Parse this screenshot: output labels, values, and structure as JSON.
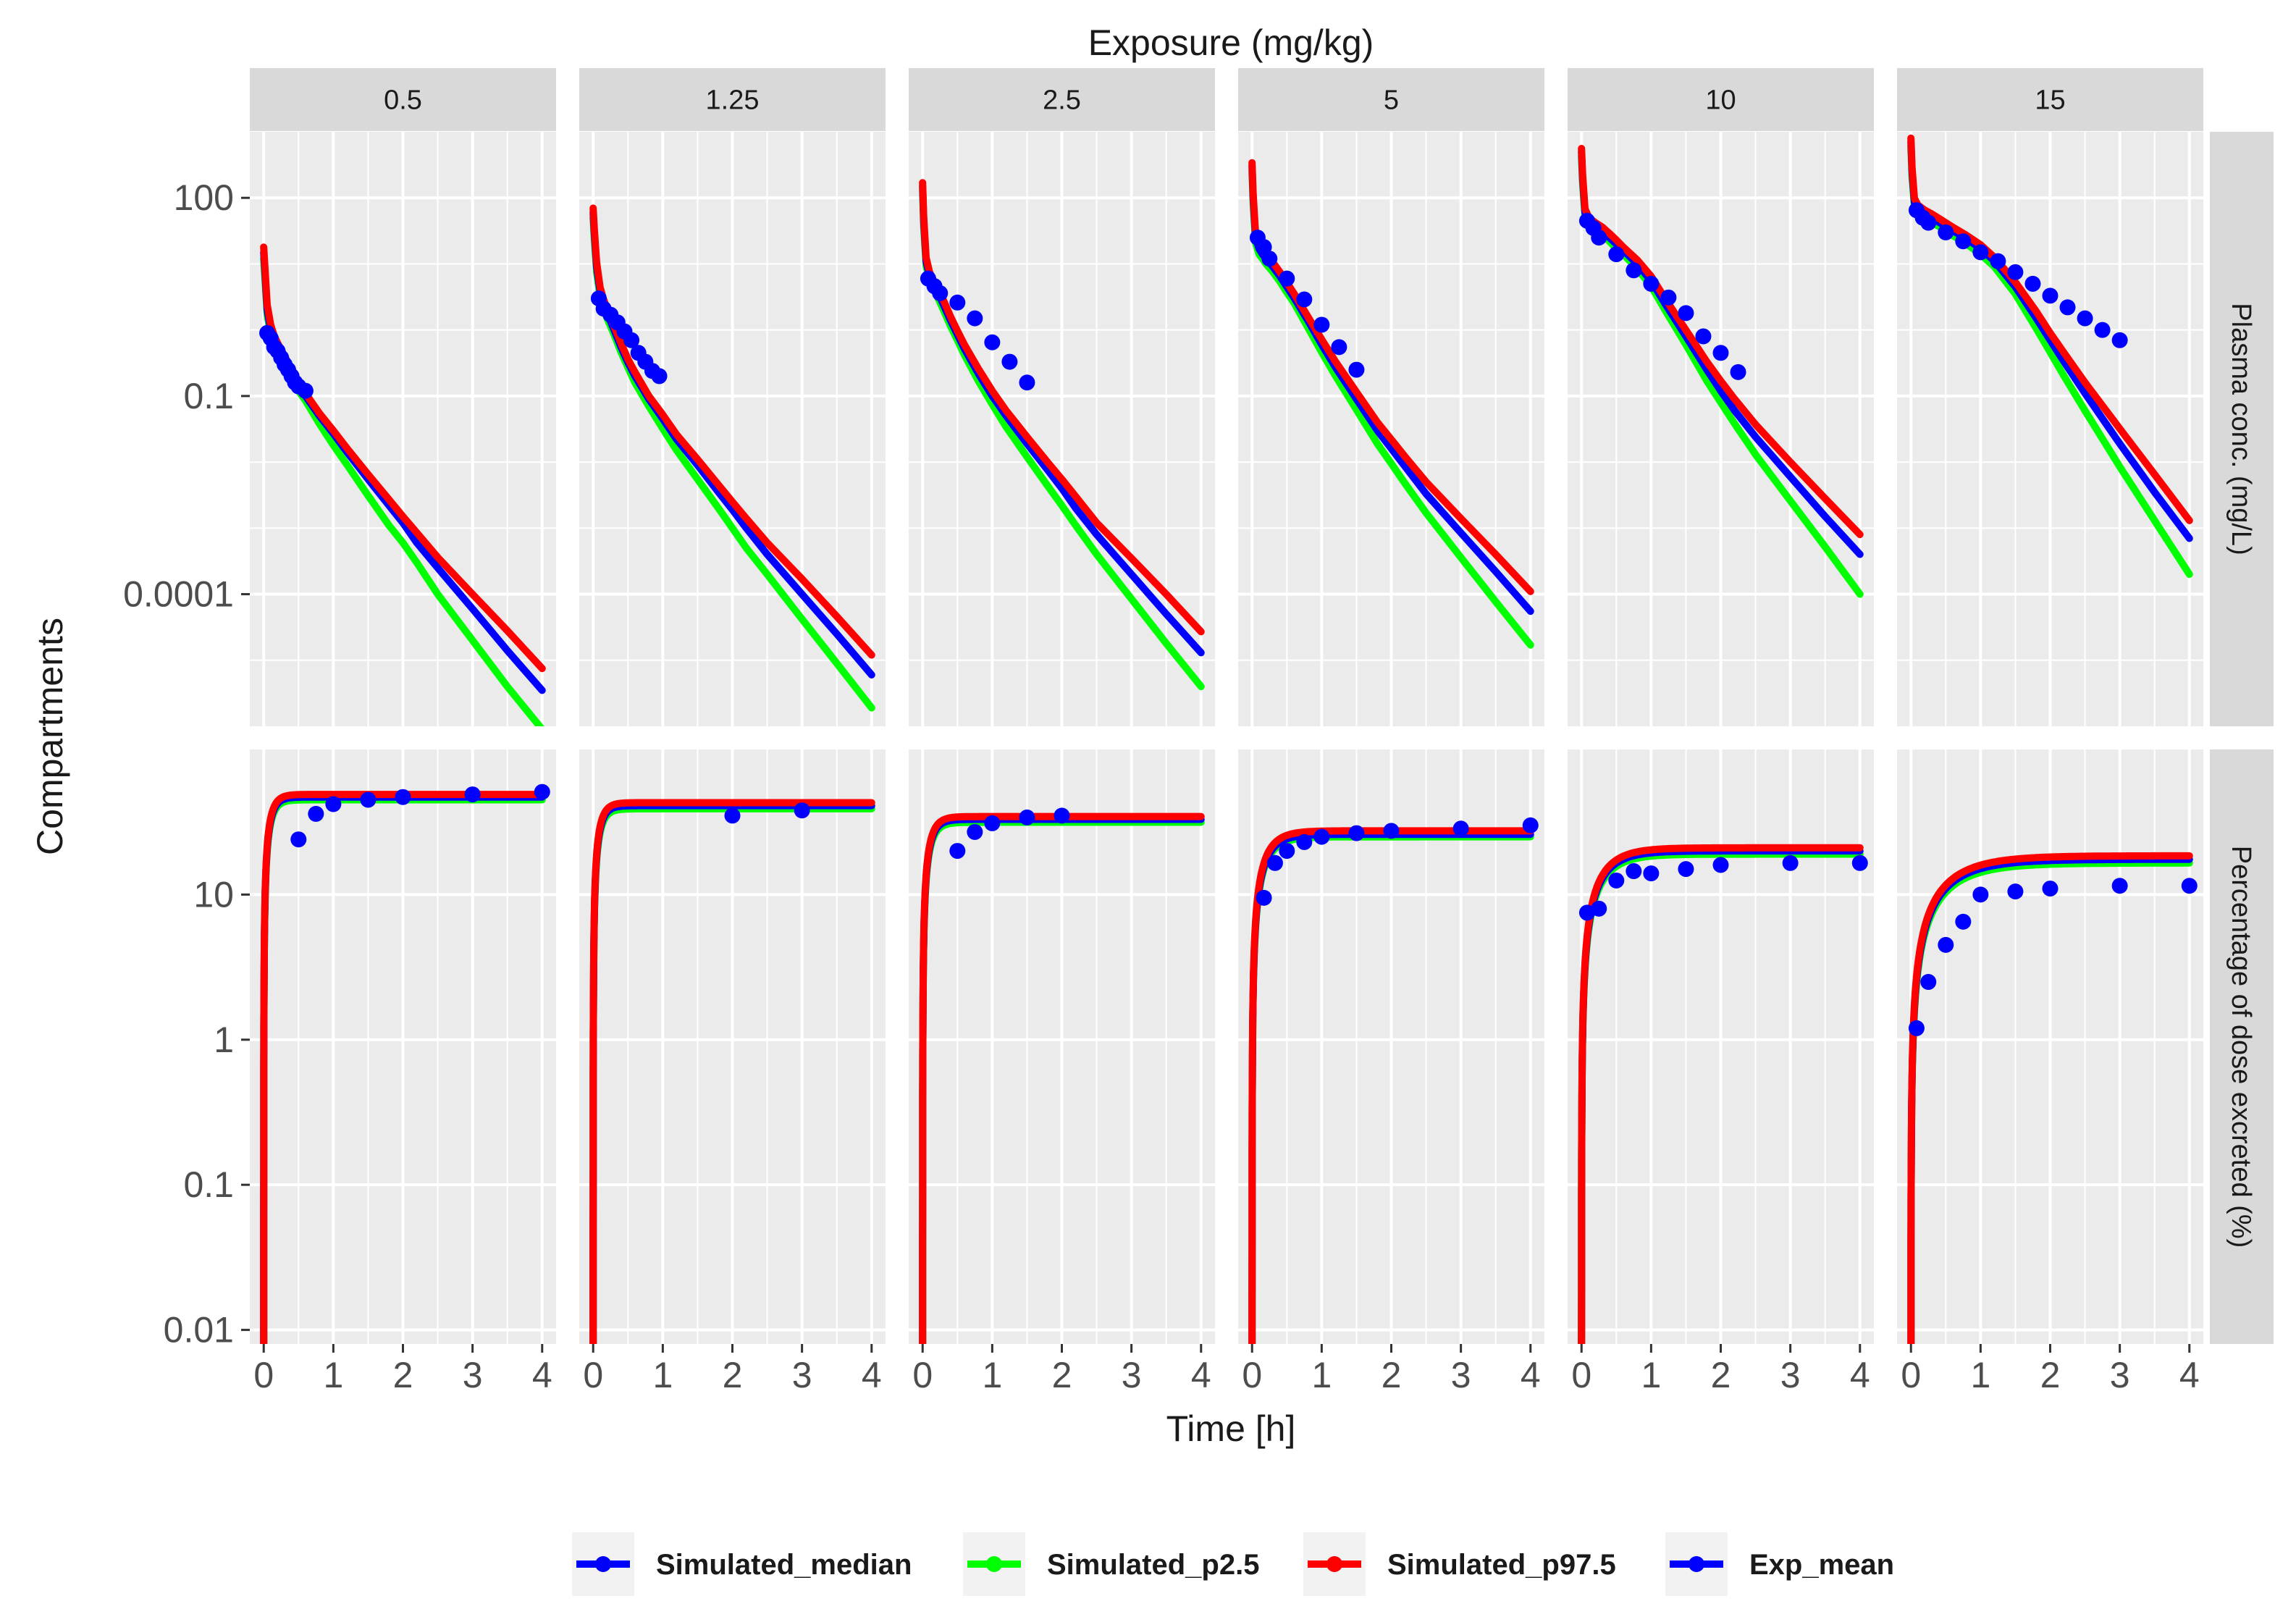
{
  "chart_data": {
    "type": "line",
    "title": "Exposure (mg/kg)",
    "xlabel": "Time [h]",
    "ylabel": "Compartments",
    "panel_columns": [
      "0.5",
      "1.25",
      "2.5",
      "5",
      "10",
      "15"
    ],
    "panel_rows": [
      {
        "label": "Plasma conc. (mg/L)",
        "scale": "log10",
        "ylim": [
          1e-06,
          1000
        ],
        "yticks": [
          100,
          0.1,
          0.0001
        ],
        "ytick_labels": [
          "100",
          "0.1",
          "0.0001"
        ],
        "sim_profile": {
          "t": [
            0,
            0.015,
            0.05,
            0.1,
            0.15,
            0.2,
            0.3,
            0.4,
            0.5,
            0.6,
            0.8,
            1.0,
            1.2,
            1.5,
            1.8,
            2.0,
            2.2,
            2.5,
            3.0,
            3.5,
            4.0
          ],
          "median": {
            "0.5": [
              15,
              8,
              2.0,
              1.0,
              0.7,
              0.55,
              0.35,
              0.22,
              0.14,
              0.1,
              0.05,
              0.027,
              0.014,
              0.0055,
              0.0022,
              0.0012,
              0.0006,
              0.00025,
              6e-05,
              1.4e-05,
              3.5e-06
            ],
            "1.25": [
              60,
              30,
              9,
              3.8,
              2.5,
              1.8,
              1.0,
              0.55,
              0.32,
              0.2,
              0.09,
              0.045,
              0.022,
              0.009,
              0.0035,
              0.0019,
              0.001,
              0.0004,
              0.0001,
              2.5e-05,
              6e-06
            ],
            "2.5": [
              150,
              45,
              11,
              6.5,
              5.0,
              4.0,
              2.4,
              1.4,
              0.85,
              0.52,
              0.22,
              0.1,
              0.05,
              0.019,
              0.0075,
              0.004,
              0.002,
              0.0008,
              0.0002,
              5e-05,
              1.3e-05
            ],
            "5": [
              300,
              100,
              25,
              17,
              14,
              12,
              9,
              6.5,
              4.5,
              3.1,
              1.4,
              0.6,
              0.27,
              0.09,
              0.03,
              0.016,
              0.0085,
              0.0033,
              0.00085,
              0.00022,
              5.5e-05
            ],
            "10": [
              500,
              200,
              60,
              45,
              40,
              37,
              31,
              25,
              20,
              16,
              10,
              5.5,
              2.5,
              0.8,
              0.25,
              0.12,
              0.06,
              0.024,
              0.006,
              0.0015,
              0.0004
            ],
            "15": [
              700,
              250,
              85,
              68,
              62,
              57,
              50,
              43,
              37,
              32,
              24,
              17,
              11,
              4.5,
              1.5,
              0.7,
              0.33,
              0.11,
              0.019,
              0.0035,
              0.0007
            ]
          },
          "p2_5": {
            "0.5": [
              12,
              6.5,
              1.7,
              0.85,
              0.6,
              0.47,
              0.3,
              0.19,
              0.12,
              0.085,
              0.038,
              0.018,
              0.009,
              0.0031,
              0.0011,
              0.0006,
              0.0003,
              0.0001,
              2e-05,
              4e-06,
              9e-07
            ],
            "1.25": [
              50,
              25,
              7.5,
              3.2,
              2.1,
              1.5,
              0.85,
              0.46,
              0.27,
              0.16,
              0.07,
              0.032,
              0.015,
              0.0055,
              0.002,
              0.001,
              0.0005,
              0.0002,
              4.2e-05,
              9e-06,
              1.9e-06
            ],
            "2.5": [
              130,
              38,
              9.5,
              5.5,
              4.2,
              3.4,
              2.0,
              1.15,
              0.7,
              0.42,
              0.17,
              0.075,
              0.034,
              0.012,
              0.0043,
              0.0022,
              0.0011,
              0.0004,
              8.5e-05,
              1.8e-05,
              4e-06
            ],
            "5": [
              260,
              85,
              21,
              14,
              12,
              10,
              7.5,
              5.4,
              3.7,
              2.6,
              1.1,
              0.46,
              0.2,
              0.062,
              0.019,
              0.0095,
              0.0047,
              0.0017,
              0.00036,
              7.7e-05,
              1.7e-05
            ],
            "10": [
              430,
              170,
              52,
              39,
              34,
              32,
              27,
              22,
              17,
              14,
              8.5,
              4.6,
              2.0,
              0.6,
              0.17,
              0.08,
              0.038,
              0.013,
              0.0026,
              0.00052,
              0.0001
            ],
            "15": [
              600,
              210,
              72,
              58,
              53,
              49,
              43,
              37,
              32,
              27,
              20,
              14,
              9,
              3.5,
              1.05,
              0.46,
              0.2,
              0.06,
              0.0085,
              0.0013,
              0.0002
            ]
          },
          "p97_5": {
            "0.5": [
              18,
              9.5,
              2.4,
              1.2,
              0.82,
              0.63,
              0.4,
              0.25,
              0.16,
              0.11,
              0.055,
              0.03,
              0.016,
              0.0065,
              0.0027,
              0.0015,
              0.00085,
              0.00036,
              0.0001,
              2.8e-05,
              7.5e-06
            ],
            "1.25": [
              70,
              35,
              10.5,
              4.4,
              2.9,
              2.1,
              1.15,
              0.63,
              0.36,
              0.23,
              0.1,
              0.052,
              0.026,
              0.011,
              0.0045,
              0.0025,
              0.0014,
              0.0006,
              0.00017,
              4.6e-05,
              1.2e-05
            ],
            "2.5": [
              170,
              52,
              12.5,
              7.5,
              5.8,
              4.6,
              2.8,
              1.6,
              0.97,
              0.6,
              0.26,
              0.12,
              0.06,
              0.024,
              0.0098,
              0.0055,
              0.003,
              0.0012,
              0.00035,
              0.0001,
              2.7e-05
            ],
            "5": [
              340,
              115,
              29,
              20,
              16,
              14,
              10.5,
              7.5,
              5.2,
              3.6,
              1.6,
              0.72,
              0.33,
              0.115,
              0.04,
              0.022,
              0.012,
              0.005,
              0.0014,
              0.0004,
              0.00011
            ],
            "10": [
              560,
              230,
              68,
              52,
              46,
              42,
              36,
              29,
              23,
              18,
              11.5,
              6.5,
              3.0,
              1.0,
              0.33,
              0.17,
              0.09,
              0.037,
              0.01,
              0.0028,
              0.0008
            ],
            "15": [
              800,
              290,
              98,
              78,
              71,
              65,
              57,
              49,
              42,
              36,
              27,
              19.5,
              12.5,
              5.3,
              1.9,
              0.9,
              0.45,
              0.16,
              0.032,
              0.0065,
              0.0013
            ]
          }
        },
        "exp_mean": {
          "0.5": [
            [
              0.05,
              0.9
            ],
            [
              0.1,
              0.75
            ],
            [
              0.15,
              0.55
            ],
            [
              0.2,
              0.48
            ],
            [
              0.25,
              0.38
            ],
            [
              0.3,
              0.3
            ],
            [
              0.35,
              0.25
            ],
            [
              0.4,
              0.2
            ],
            [
              0.45,
              0.16
            ],
            [
              0.5,
              0.14
            ],
            [
              0.6,
              0.12
            ]
          ],
          "1.25": [
            [
              0.08,
              3.0
            ],
            [
              0.15,
              2.1
            ],
            [
              0.25,
              1.7
            ],
            [
              0.35,
              1.3
            ],
            [
              0.45,
              0.95
            ],
            [
              0.55,
              0.7
            ],
            [
              0.65,
              0.45
            ],
            [
              0.75,
              0.33
            ],
            [
              0.85,
              0.24
            ],
            [
              0.95,
              0.2
            ]
          ],
          "2.5": [
            [
              0.08,
              6.0
            ],
            [
              0.17,
              4.6
            ],
            [
              0.25,
              3.6
            ],
            [
              0.5,
              2.6
            ],
            [
              0.75,
              1.5
            ],
            [
              1.0,
              0.65
            ],
            [
              1.25,
              0.33
            ],
            [
              1.5,
              0.16
            ]
          ],
          "5": [
            [
              0.08,
              25
            ],
            [
              0.17,
              18
            ],
            [
              0.25,
              12
            ],
            [
              0.5,
              6.0
            ],
            [
              0.75,
              2.9
            ],
            [
              1.0,
              1.2
            ],
            [
              1.25,
              0.55
            ],
            [
              1.5,
              0.25
            ]
          ],
          "10": [
            [
              0.08,
              45
            ],
            [
              0.17,
              35
            ],
            [
              0.25,
              25
            ],
            [
              0.5,
              14
            ],
            [
              0.75,
              8.0
            ],
            [
              1.0,
              5.0
            ],
            [
              1.25,
              3.1
            ],
            [
              1.5,
              1.8
            ],
            [
              1.75,
              0.8
            ],
            [
              2.0,
              0.45
            ],
            [
              2.25,
              0.23
            ]
          ],
          "15": [
            [
              0.08,
              65
            ],
            [
              0.17,
              50
            ],
            [
              0.25,
              42
            ],
            [
              0.5,
              30
            ],
            [
              0.75,
              22
            ],
            [
              1.0,
              15
            ],
            [
              1.25,
              11
            ],
            [
              1.5,
              7.5
            ],
            [
              1.75,
              5.0
            ],
            [
              2.0,
              3.3
            ],
            [
              2.25,
              2.2
            ],
            [
              2.5,
              1.5
            ],
            [
              2.75,
              1.0
            ],
            [
              3.0,
              0.7
            ]
          ]
        }
      },
      {
        "label": "Percentage of dose excreted (%)",
        "scale": "log10",
        "ylim": [
          0.008,
          100
        ],
        "yticks": [
          10,
          1,
          0.1,
          0.01
        ],
        "ytick_labels": [
          "10",
          "1",
          "0.1",
          "0.01"
        ],
        "sim_profile": {
          "plateau": {
            "0.5": {
              "median": 47,
              "p2_5": 45,
              "p97_5": 49
            },
            "1.25": {
              "median": 41,
              "p2_5": 39,
              "p97_5": 43
            },
            "2.5": {
              "median": 33,
              "p2_5": 31.5,
              "p97_5": 34.5
            },
            "5": {
              "median": 26,
              "p2_5": 25,
              "p97_5": 27.5
            },
            "10": {
              "median": 20,
              "p2_5": 19,
              "p97_5": 21
            },
            "15": {
              "median": 17.5,
              "p2_5": 16.5,
              "p97_5": 18.5
            }
          },
          "t50_h": {
            "0.5": 0.06,
            "1.25": 0.06,
            "2.5": 0.07,
            "5": 0.13,
            "10": 0.2,
            "15": 0.35
          }
        },
        "exp_mean": {
          "0.5": [
            [
              0.5,
              24
            ],
            [
              0.75,
              36
            ],
            [
              1.0,
              42
            ],
            [
              1.5,
              45
            ],
            [
              2.0,
              47
            ],
            [
              3.0,
              49
            ],
            [
              4.0,
              51
            ]
          ],
          "1.25": [
            [
              2.0,
              35
            ],
            [
              3.0,
              38
            ]
          ],
          "2.5": [
            [
              0.5,
              20
            ],
            [
              0.75,
              27
            ],
            [
              1.0,
              31
            ],
            [
              1.5,
              34
            ],
            [
              2.0,
              35
            ]
          ],
          "5": [
            [
              0.17,
              9.5
            ],
            [
              0.33,
              16.5
            ],
            [
              0.5,
              20
            ],
            [
              0.75,
              23
            ],
            [
              1.0,
              25
            ],
            [
              1.5,
              26.5
            ],
            [
              2.0,
              27.5
            ],
            [
              3.0,
              28.5
            ],
            [
              4.0,
              30
            ]
          ],
          "10": [
            [
              0.08,
              7.5
            ],
            [
              0.25,
              8.0
            ],
            [
              0.5,
              12.5
            ],
            [
              0.75,
              14.5
            ],
            [
              1.0,
              14.0
            ],
            [
              1.5,
              15
            ],
            [
              2.0,
              16
            ],
            [
              3.0,
              16.5
            ],
            [
              4.0,
              16.5
            ]
          ],
          "15": [
            [
              0.08,
              1.2
            ],
            [
              0.25,
              2.5
            ],
            [
              0.5,
              4.5
            ],
            [
              0.75,
              6.5
            ],
            [
              1.0,
              10
            ],
            [
              1.5,
              10.5
            ],
            [
              2.0,
              11
            ],
            [
              3.0,
              11.5
            ],
            [
              4.0,
              11.5
            ]
          ]
        }
      }
    ],
    "x": {
      "xlim": [
        -0.2,
        4.2
      ],
      "ticks": [
        0,
        1,
        2,
        3,
        4
      ]
    },
    "grid": true,
    "legend_position": "bottom",
    "series": [
      {
        "name": "Simulated_median",
        "color": "#0000ff",
        "kind": "line"
      },
      {
        "name": "Simulated_p2.5",
        "color": "#00ff00",
        "kind": "line"
      },
      {
        "name": "Simulated_p97.5",
        "color": "#ff0000",
        "kind": "line"
      },
      {
        "name": "Exp_mean",
        "color": "#0000ff",
        "kind": "points"
      }
    ],
    "colors": {
      "panel_bg": "#ebebeb",
      "strip_bg": "#d9d9d9",
      "grid": "#ffffff",
      "text": "#1a1a1a",
      "axis_text": "#4d4d4d"
    }
  }
}
